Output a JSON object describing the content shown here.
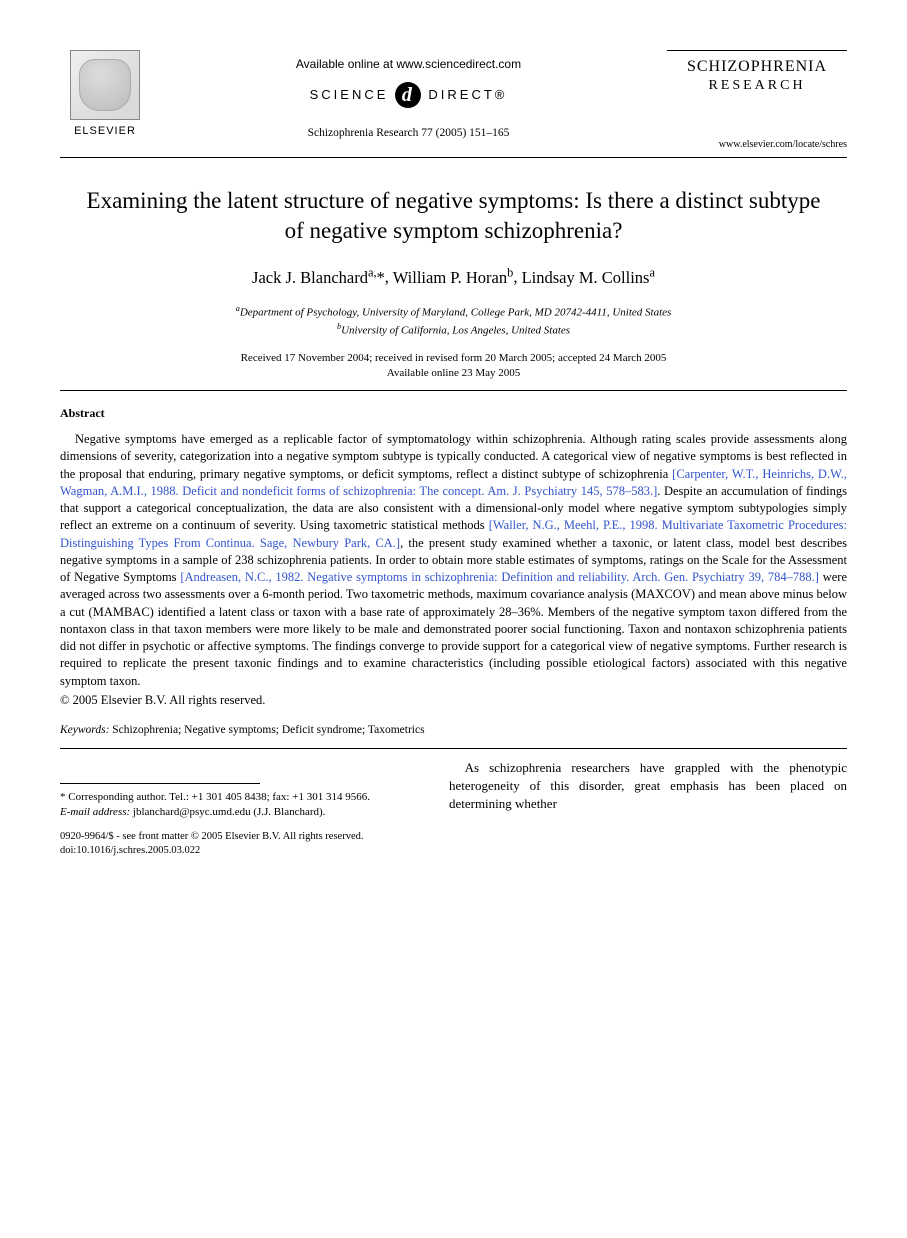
{
  "header": {
    "elsevier": "ELSEVIER",
    "available_online": "Available online at www.sciencedirect.com",
    "science": "SCIENCE",
    "direct": "DIRECT®",
    "citation": "Schizophrenia Research 77 (2005) 151–165",
    "journal_title": "SCHIZOPHRENIA",
    "journal_subtitle": "RESEARCH",
    "journal_url": "www.elsevier.com/locate/schres"
  },
  "article": {
    "title": "Examining the latent structure of negative symptoms: Is there a distinct subtype of negative symptom schizophrenia?",
    "authors_html": "Jack J. Blanchard<sup>a,</sup>*, William P. Horan<sup>b</sup>, Lindsay M. Collins<sup>a</sup>",
    "affil_a": "Department of Psychology, University of Maryland, College Park, MD 20742-4411, United States",
    "affil_b": "University of California, Los Angeles, United States",
    "dates_line1": "Received 17 November 2004; received in revised form 20 March 2005; accepted 24 March 2005",
    "dates_line2": "Available online 23 May 2005"
  },
  "abstract": {
    "heading": "Abstract",
    "p1a": "Negative symptoms have emerged as a replicable factor of symptomatology within schizophrenia. Although rating scales provide assessments along dimensions of severity, categorization into a negative symptom subtype is typically conducted. A categorical view of negative symptoms is best reflected in the proposal that enduring, primary negative symptoms, or deficit symptoms, reflect a distinct subtype of schizophrenia ",
    "ref1": "[Carpenter, W.T., Heinrichs, D.W., Wagman, A.M.I., 1988. Deficit and nondeficit forms of schizophrenia: The concept. Am. J. Psychiatry 145, 578–583.]",
    "p1b": ". Despite an accumulation of findings that support a categorical conceptualization, the data are also consistent with a dimensional-only model where negative symptom subtypologies simply reflect an extreme on a continuum of severity. Using taxometric statistical methods ",
    "ref2": "[Waller, N.G., Meehl, P.E., 1998. Multivariate Taxometric Procedures: Distinguishing Types From Continua. Sage, Newbury Park, CA.]",
    "p1c": ", the present study examined whether a taxonic, or latent class, model best describes negative symptoms in a sample of 238 schizophrenia patients. In order to obtain more stable estimates of symptoms, ratings on the Scale for the Assessment of Negative Symptoms ",
    "ref3": "[Andreasen, N.C., 1982. Negative symptoms in schizophrenia: Definition and reliability. Arch. Gen. Psychiatry 39, 784–788.]",
    "p1d": " were averaged across two assessments over a 6-month period. Two taxometric methods, maximum covariance analysis (MAXCOV) and mean above minus below a cut (MAMBAC) identified a latent class or taxon with a base rate of approximately 28–36%. Members of the negative symptom taxon differed from the nontaxon class in that taxon members were more likely to be male and demonstrated poorer social functioning. Taxon and nontaxon schizophrenia patients did not differ in psychotic or affective symptoms. The findings converge to provide support for a categorical view of negative symptoms. Further research is required to replicate the present taxonic findings and to examine characteristics (including possible etiological factors) associated with this negative symptom taxon.",
    "copyright": "© 2005 Elsevier B.V. All rights reserved."
  },
  "keywords": {
    "label": "Keywords:",
    "text": " Schizophrenia; Negative symptoms; Deficit syndrome; Taxometrics"
  },
  "footer": {
    "corresponding": "* Corresponding author. Tel.: +1 301 405 8438; fax: +1 301 314 9566.",
    "email_label": "E-mail address:",
    "email": " jblanchard@psyc.umd.edu (J.J. Blanchard).",
    "issn_line": "0920-9964/$ - see front matter © 2005 Elsevier B.V. All rights reserved.",
    "doi": "doi:10.1016/j.schres.2005.03.022"
  },
  "body": {
    "intro": "As schizophrenia researchers have grappled with the phenotypic heterogeneity of this disorder, great emphasis has been placed on determining whether"
  }
}
